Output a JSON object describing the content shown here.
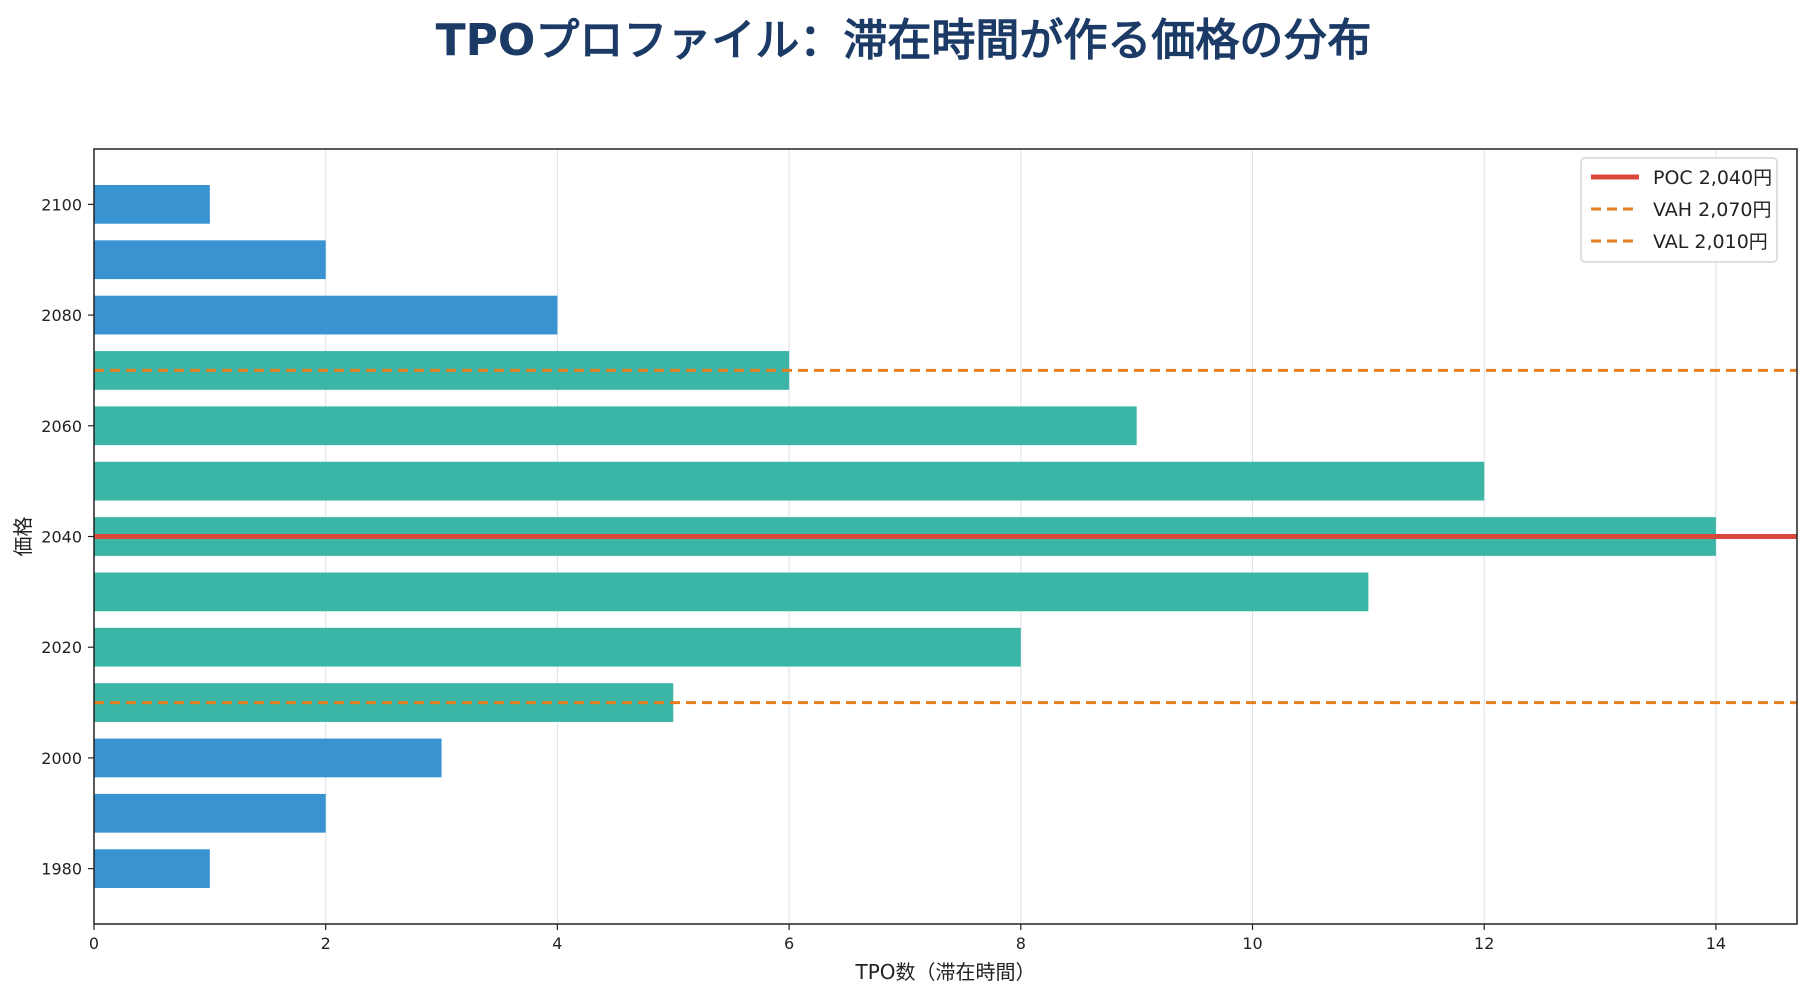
{
  "chart_data": {
    "type": "bar",
    "orientation": "horizontal",
    "title": "TPOプロファイル：滞在時間が作る価格の分布",
    "xlabel": "TPO数（滞在時間）",
    "ylabel": "価格",
    "xlim": [
      0,
      14.7
    ],
    "ylim": [
      1970,
      2110
    ],
    "x_ticks": [
      0,
      2,
      4,
      6,
      8,
      10,
      12,
      14
    ],
    "y_ticks": [
      1980,
      2000,
      2020,
      2040,
      2060,
      2080,
      2100
    ],
    "grid": "vertical",
    "bars": [
      {
        "price": 1980,
        "tpo": 1,
        "in_value_area": false
      },
      {
        "price": 1990,
        "tpo": 2,
        "in_value_area": false
      },
      {
        "price": 2000,
        "tpo": 3,
        "in_value_area": false
      },
      {
        "price": 2010,
        "tpo": 5,
        "in_value_area": true
      },
      {
        "price": 2020,
        "tpo": 8,
        "in_value_area": true
      },
      {
        "price": 2030,
        "tpo": 11,
        "in_value_area": true
      },
      {
        "price": 2040,
        "tpo": 14,
        "in_value_area": true
      },
      {
        "price": 2050,
        "tpo": 12,
        "in_value_area": true
      },
      {
        "price": 2060,
        "tpo": 9,
        "in_value_area": true
      },
      {
        "price": 2070,
        "tpo": 6,
        "in_value_area": true
      },
      {
        "price": 2080,
        "tpo": 4,
        "in_value_area": false
      },
      {
        "price": 2090,
        "tpo": 2,
        "in_value_area": false
      },
      {
        "price": 2100,
        "tpo": 1,
        "in_value_area": false
      }
    ],
    "reference_lines": [
      {
        "name": "POC 2,040円",
        "value": 2040,
        "style": "solid",
        "color": "#d9483b"
      },
      {
        "name": "VAH 2,070円",
        "value": 2070,
        "style": "dashed",
        "color": "#e67e22"
      },
      {
        "name": "VAL 2,010円",
        "value": 2010,
        "style": "dashed",
        "color": "#e67e22"
      }
    ],
    "legend_position": "top-right",
    "colors": {
      "value_area_bar": "#3bb5a6",
      "outside_bar": "#3a93d1",
      "title": "#1b3b66",
      "grid": "#dde1e6"
    }
  }
}
